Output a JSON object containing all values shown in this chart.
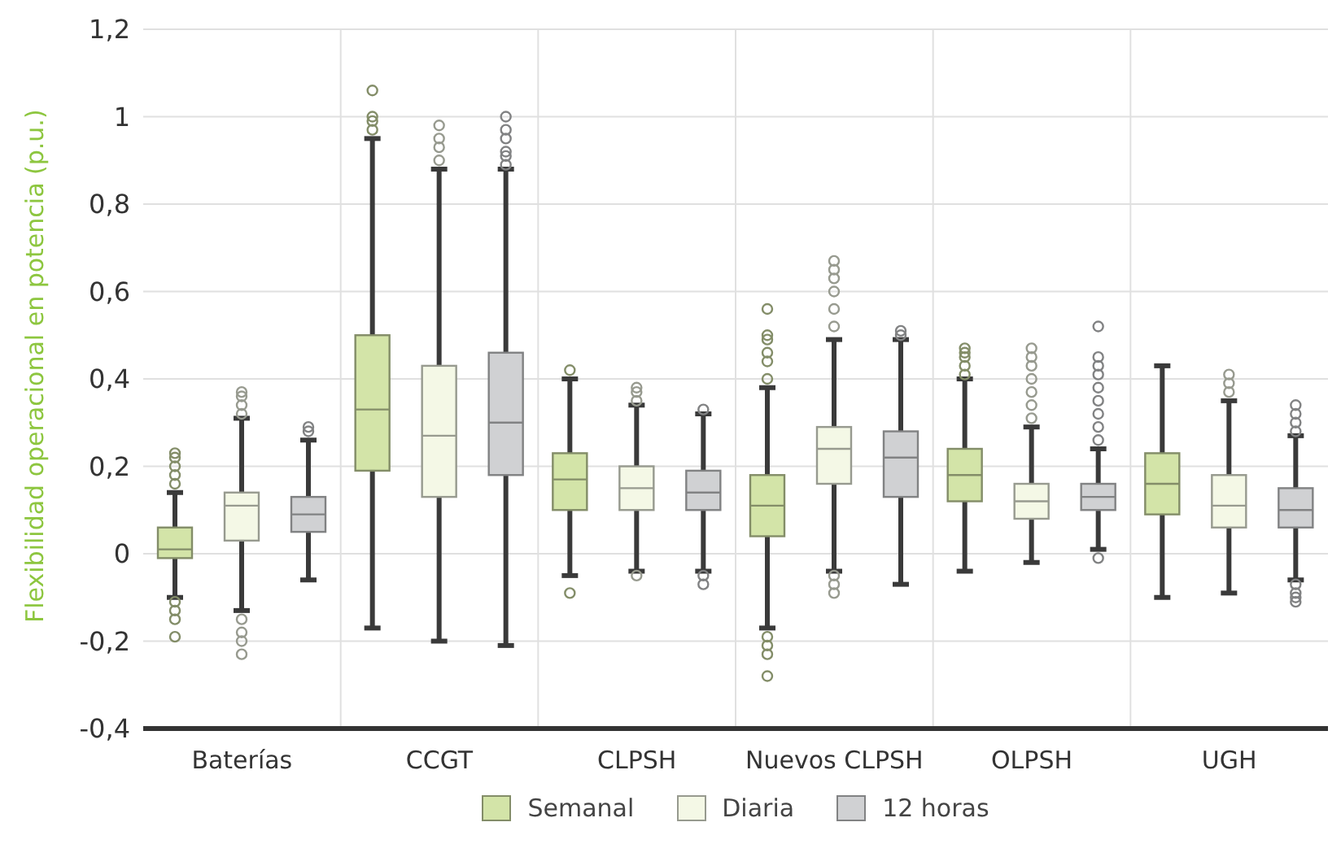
{
  "chart_data": {
    "type": "box",
    "ylabel": "Flexibilidad operacional en potencia (p.u.)",
    "categories": [
      "Baterías",
      "CCGT",
      "CLPSH",
      "Nuevos CLPSH",
      "OLPSH",
      "UGH"
    ],
    "ylim": [
      -0.4,
      1.2
    ],
    "yticks": [
      {
        "value": -0.4,
        "label": "-0,4"
      },
      {
        "value": -0.2,
        "label": "-0,2"
      },
      0,
      {
        "value": 0.2,
        "label": "0,2"
      },
      {
        "value": 0.4,
        "label": "0,4"
      },
      {
        "value": 0.6,
        "label": "0,6"
      },
      {
        "value": 0.8,
        "label": "0,8"
      },
      1,
      {
        "value": 1.2,
        "label": "1,2"
      }
    ],
    "grid": true,
    "legend": "bottom",
    "series": [
      {
        "name": "Semanal",
        "color": "#d3e4a8",
        "boxes": [
          {
            "low": -0.1,
            "q1": -0.01,
            "median": 0.01,
            "q3": 0.06,
            "high": 0.14,
            "outliers": [
              0.16,
              0.18,
              0.2,
              0.22,
              0.23,
              -0.11,
              -0.13,
              -0.15,
              -0.19
            ]
          },
          {
            "low": -0.17,
            "q1": 0.19,
            "median": 0.33,
            "q3": 0.5,
            "high": 0.95,
            "outliers": [
              0.97,
              0.99,
              1.0,
              1.06
            ]
          },
          {
            "low": -0.05,
            "q1": 0.1,
            "median": 0.17,
            "q3": 0.23,
            "high": 0.4,
            "outliers": [
              0.42,
              -0.09
            ]
          },
          {
            "low": -0.17,
            "q1": 0.04,
            "median": 0.11,
            "q3": 0.18,
            "high": 0.38,
            "outliers": [
              0.4,
              0.44,
              0.46,
              0.49,
              0.5,
              0.56,
              -0.19,
              -0.21,
              -0.23,
              -0.28
            ]
          },
          {
            "low": -0.04,
            "q1": 0.12,
            "median": 0.18,
            "q3": 0.24,
            "high": 0.4,
            "outliers": [
              0.41,
              0.43,
              0.45,
              0.46,
              0.47
            ]
          },
          {
            "low": -0.1,
            "q1": 0.09,
            "median": 0.16,
            "q3": 0.23,
            "high": 0.43
          }
        ]
      },
      {
        "name": "Diaria",
        "color": "#f4f8e6",
        "boxes": [
          {
            "low": -0.13,
            "q1": 0.03,
            "median": 0.11,
            "q3": 0.14,
            "high": 0.31,
            "outliers": [
              0.32,
              0.34,
              0.36,
              0.37,
              -0.15,
              -0.18,
              -0.2,
              -0.23
            ]
          },
          {
            "low": -0.2,
            "q1": 0.13,
            "median": 0.27,
            "q3": 0.43,
            "high": 0.88,
            "outliers": [
              0.9,
              0.93,
              0.95,
              0.98
            ]
          },
          {
            "low": -0.04,
            "q1": 0.1,
            "median": 0.15,
            "q3": 0.2,
            "high": 0.34,
            "outliers": [
              0.35,
              0.37,
              0.38,
              -0.05
            ]
          },
          {
            "low": -0.04,
            "q1": 0.16,
            "median": 0.24,
            "q3": 0.29,
            "high": 0.49,
            "outliers": [
              0.52,
              0.56,
              0.6,
              0.63,
              0.65,
              0.67,
              -0.05,
              -0.07,
              -0.09
            ]
          },
          {
            "low": -0.02,
            "q1": 0.08,
            "median": 0.12,
            "q3": 0.16,
            "high": 0.29,
            "outliers": [
              0.31,
              0.34,
              0.37,
              0.4,
              0.43,
              0.45,
              0.47
            ]
          },
          {
            "low": -0.09,
            "q1": 0.06,
            "median": 0.11,
            "q3": 0.18,
            "high": 0.35,
            "outliers": [
              0.37,
              0.39,
              0.41
            ]
          }
        ]
      },
      {
        "name": "12 horas",
        "color": "#d0d1d3",
        "boxes": [
          {
            "low": -0.06,
            "q1": 0.05,
            "median": 0.09,
            "q3": 0.13,
            "high": 0.26,
            "outliers": [
              0.28,
              0.29
            ]
          },
          {
            "low": -0.21,
            "q1": 0.18,
            "median": 0.3,
            "q3": 0.46,
            "high": 0.88,
            "outliers": [
              0.89,
              0.91,
              0.92,
              0.95,
              0.97,
              1.0
            ]
          },
          {
            "low": -0.04,
            "q1": 0.1,
            "median": 0.14,
            "q3": 0.19,
            "high": 0.32,
            "outliers": [
              0.33,
              -0.05,
              -0.07
            ]
          },
          {
            "low": -0.07,
            "q1": 0.13,
            "median": 0.22,
            "q3": 0.28,
            "high": 0.49,
            "outliers": [
              0.5,
              0.51
            ]
          },
          {
            "low": 0.01,
            "q1": 0.1,
            "median": 0.13,
            "q3": 0.16,
            "high": 0.24,
            "outliers": [
              0.26,
              0.29,
              0.32,
              0.35,
              0.38,
              0.41,
              0.43,
              0.45,
              0.52,
              -0.01
            ]
          },
          {
            "low": -0.06,
            "q1": 0.06,
            "median": 0.1,
            "q3": 0.15,
            "high": 0.27,
            "outliers": [
              0.28,
              0.3,
              0.32,
              0.34,
              -0.07,
              -0.09,
              -0.1,
              -0.11
            ]
          }
        ]
      }
    ]
  }
}
